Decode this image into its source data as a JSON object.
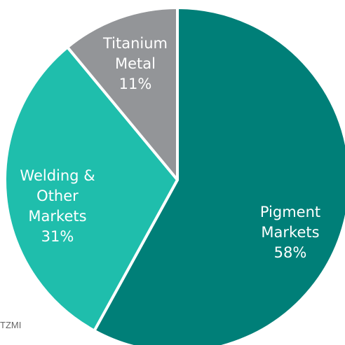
{
  "chart_data": {
    "type": "pie",
    "slices": [
      {
        "label_lines": [
          "Pigment",
          "Markets"
        ],
        "value": 58,
        "value_label": "58%",
        "color": "#007f78"
      },
      {
        "label_lines": [
          "Welding &",
          "Other",
          "Markets"
        ],
        "value": 31,
        "value_label": "31%",
        "color": "#1fbeac"
      },
      {
        "label_lines": [
          "Titanium",
          "Metal"
        ],
        "value": 11,
        "value_label": "11%",
        "color": "#939598"
      }
    ],
    "start_angle_deg": 0,
    "direction": "clockwise"
  },
  "source": "TZMI"
}
